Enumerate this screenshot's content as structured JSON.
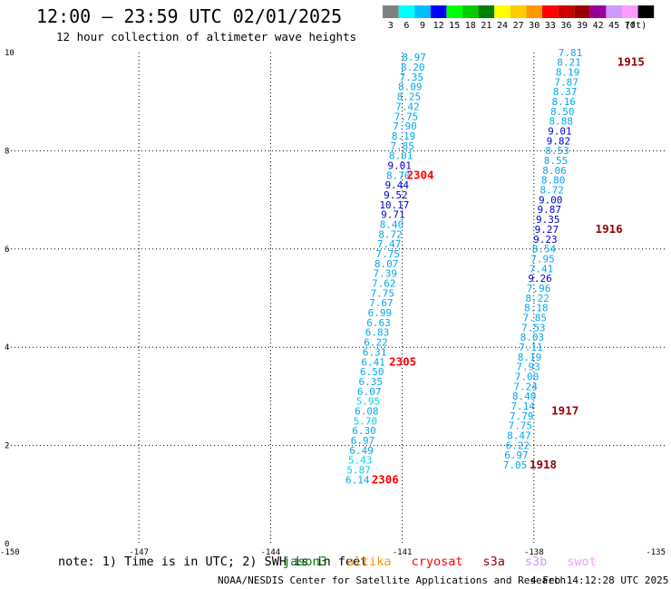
{
  "header": {
    "title": "12:00 – 23:59 UTC 02/01/2025",
    "subtitle": "12 hour collection of altimeter wave heights"
  },
  "legend": {
    "unit": "(ft)",
    "bins": [
      {
        "label": "3",
        "color": "#808080"
      },
      {
        "label": "6",
        "color": "#00ffff"
      },
      {
        "label": "9",
        "color": "#00bfff"
      },
      {
        "label": "12",
        "color": "#0000ff"
      },
      {
        "label": "15",
        "color": "#00ff00"
      },
      {
        "label": "18",
        "color": "#00cc00"
      },
      {
        "label": "21",
        "color": "#008000"
      },
      {
        "label": "24",
        "color": "#ffff00"
      },
      {
        "label": "27",
        "color": "#ffcc00"
      },
      {
        "label": "30",
        "color": "#ff9900"
      },
      {
        "label": "33",
        "color": "#ff0000"
      },
      {
        "label": "36",
        "color": "#cc0000"
      },
      {
        "label": "39",
        "color": "#990000"
      },
      {
        "label": "42",
        "color": "#990099"
      },
      {
        "label": "45",
        "color": "#cc99ff"
      },
      {
        "label": "70",
        "color": "#ff99ff"
      },
      {
        "label": "",
        "color": "#000000"
      }
    ]
  },
  "chart_data": {
    "type": "scatter",
    "xlim": [
      -150,
      -135
    ],
    "ylim": [
      0,
      10
    ],
    "xticks": [
      "-150",
      "-147",
      "-144",
      "-141",
      "-138",
      "-135"
    ],
    "yticks": [
      "0",
      "2",
      "4",
      "6",
      "8",
      "10"
    ],
    "xtick_values": [
      -150,
      -147,
      -144,
      -141,
      -138,
      -135
    ],
    "ytick_values": [
      0,
      2,
      4,
      6,
      8,
      10
    ],
    "grid": true,
    "tracks": [
      {
        "points": [
          {
            "x": -140.73,
            "y": 9.83,
            "v": "8.97"
          },
          {
            "x": -140.76,
            "y": 9.63,
            "v": "8.20"
          },
          {
            "x": -140.79,
            "y": 9.43,
            "v": "7.35"
          },
          {
            "x": -140.82,
            "y": 9.23,
            "v": "8.09"
          },
          {
            "x": -140.85,
            "y": 9.03,
            "v": "8.25"
          },
          {
            "x": -140.88,
            "y": 8.83,
            "v": "7.42"
          },
          {
            "x": -140.91,
            "y": 8.63,
            "v": "7.75"
          },
          {
            "x": -140.94,
            "y": 8.43,
            "v": "7.90"
          },
          {
            "x": -140.97,
            "y": 8.23,
            "v": "8.19"
          },
          {
            "x": -141.0,
            "y": 8.03,
            "v": "7.85"
          },
          {
            "x": -141.03,
            "y": 7.83,
            "v": "8.01"
          },
          {
            "x": -141.06,
            "y": 7.63,
            "v": "9.01"
          },
          {
            "x": -141.09,
            "y": 7.43,
            "v": "8.70"
          },
          {
            "x": -141.12,
            "y": 7.23,
            "v": "9.44"
          },
          {
            "x": -141.15,
            "y": 7.03,
            "v": "9.52"
          },
          {
            "x": -141.18,
            "y": 6.83,
            "v": "10.17"
          },
          {
            "x": -141.21,
            "y": 6.63,
            "v": "9.71"
          },
          {
            "x": -141.24,
            "y": 6.43,
            "v": "8.40"
          },
          {
            "x": -141.27,
            "y": 6.23,
            "v": "8.72"
          },
          {
            "x": -141.3,
            "y": 6.03,
            "v": "7.47"
          },
          {
            "x": -141.33,
            "y": 5.83,
            "v": "7.75"
          },
          {
            "x": -141.36,
            "y": 5.63,
            "v": "8.07"
          },
          {
            "x": -141.39,
            "y": 5.43,
            "v": "7.39"
          },
          {
            "x": -141.42,
            "y": 5.23,
            "v": "7.62"
          },
          {
            "x": -141.45,
            "y": 5.03,
            "v": "7.75"
          },
          {
            "x": -141.48,
            "y": 4.83,
            "v": "7.67"
          },
          {
            "x": -141.51,
            "y": 4.63,
            "v": "6.99"
          },
          {
            "x": -141.54,
            "y": 4.43,
            "v": "6.63"
          },
          {
            "x": -141.57,
            "y": 4.23,
            "v": "6.83"
          },
          {
            "x": -141.6,
            "y": 4.03,
            "v": "6.22"
          },
          {
            "x": -141.63,
            "y": 3.83,
            "v": "6.31"
          },
          {
            "x": -141.66,
            "y": 3.63,
            "v": "6.41"
          },
          {
            "x": -141.69,
            "y": 3.43,
            "v": "6.50"
          },
          {
            "x": -141.72,
            "y": 3.23,
            "v": "6.35"
          },
          {
            "x": -141.75,
            "y": 3.03,
            "v": "6.07"
          },
          {
            "x": -141.78,
            "y": 2.83,
            "v": "5.95"
          },
          {
            "x": -141.81,
            "y": 2.63,
            "v": "6.08"
          },
          {
            "x": -141.84,
            "y": 2.43,
            "v": "5.70"
          },
          {
            "x": -141.87,
            "y": 2.23,
            "v": "6.30"
          },
          {
            "x": -141.9,
            "y": 2.03,
            "v": "6.97"
          },
          {
            "x": -141.93,
            "y": 1.83,
            "v": "6.49"
          },
          {
            "x": -141.96,
            "y": 1.63,
            "v": "5.43"
          },
          {
            "x": -141.99,
            "y": 1.43,
            "v": "5.87"
          },
          {
            "x": -142.02,
            "y": 1.23,
            "v": "6.14"
          }
        ]
      },
      {
        "points": [
          {
            "x": -137.17,
            "y": 9.93,
            "v": "7.81"
          },
          {
            "x": -137.2,
            "y": 9.73,
            "v": "8.21"
          },
          {
            "x": -137.23,
            "y": 9.53,
            "v": "8.19"
          },
          {
            "x": -137.26,
            "y": 9.33,
            "v": "7.87"
          },
          {
            "x": -137.29,
            "y": 9.13,
            "v": "8.37"
          },
          {
            "x": -137.32,
            "y": 8.93,
            "v": "8.16"
          },
          {
            "x": -137.35,
            "y": 8.73,
            "v": "8.50"
          },
          {
            "x": -137.38,
            "y": 8.53,
            "v": "8.88"
          },
          {
            "x": -137.41,
            "y": 8.33,
            "v": "9.01"
          },
          {
            "x": -137.44,
            "y": 8.13,
            "v": "9.82"
          },
          {
            "x": -137.47,
            "y": 7.93,
            "v": "8.53"
          },
          {
            "x": -137.5,
            "y": 7.73,
            "v": "8.55"
          },
          {
            "x": -137.53,
            "y": 7.53,
            "v": "8.06"
          },
          {
            "x": -137.56,
            "y": 7.33,
            "v": "8.80"
          },
          {
            "x": -137.59,
            "y": 7.13,
            "v": "8.72"
          },
          {
            "x": -137.62,
            "y": 6.93,
            "v": "9.00"
          },
          {
            "x": -137.65,
            "y": 6.73,
            "v": "9.87"
          },
          {
            "x": -137.68,
            "y": 6.53,
            "v": "9.35"
          },
          {
            "x": -137.71,
            "y": 6.33,
            "v": "9.27"
          },
          {
            "x": -137.74,
            "y": 6.13,
            "v": "9.23"
          },
          {
            "x": -137.77,
            "y": 5.93,
            "v": "8.54"
          },
          {
            "x": -137.8,
            "y": 5.73,
            "v": "7.95"
          },
          {
            "x": -137.83,
            "y": 5.53,
            "v": "7.41"
          },
          {
            "x": -137.86,
            "y": 5.33,
            "v": "9.26"
          },
          {
            "x": -137.89,
            "y": 5.13,
            "v": "7.96"
          },
          {
            "x": -137.92,
            "y": 4.93,
            "v": "8.22"
          },
          {
            "x": -137.95,
            "y": 4.73,
            "v": "8.18"
          },
          {
            "x": -137.98,
            "y": 4.53,
            "v": "7.85"
          },
          {
            "x": -138.01,
            "y": 4.33,
            "v": "7.53"
          },
          {
            "x": -138.04,
            "y": 4.13,
            "v": "8.03"
          },
          {
            "x": -138.07,
            "y": 3.93,
            "v": "7.11"
          },
          {
            "x": -138.1,
            "y": 3.73,
            "v": "8.19"
          },
          {
            "x": -138.13,
            "y": 3.53,
            "v": "7.93"
          },
          {
            "x": -138.16,
            "y": 3.33,
            "v": "7.00"
          },
          {
            "x": -138.19,
            "y": 3.13,
            "v": "7.24"
          },
          {
            "x": -138.22,
            "y": 2.93,
            "v": "8.40"
          },
          {
            "x": -138.25,
            "y": 2.73,
            "v": "7.14"
          },
          {
            "x": -138.28,
            "y": 2.53,
            "v": "7.79"
          },
          {
            "x": -138.31,
            "y": 2.33,
            "v": "7.75"
          },
          {
            "x": -138.34,
            "y": 2.13,
            "v": "8.47"
          },
          {
            "x": -138.37,
            "y": 1.93,
            "v": "6.22"
          },
          {
            "x": -138.4,
            "y": 1.73,
            "v": "6.97"
          },
          {
            "x": -138.43,
            "y": 1.53,
            "v": "7.05"
          }
        ]
      }
    ],
    "annotations": [
      {
        "text": "1915",
        "x": -136.1,
        "y": 9.73,
        "color": "#990000"
      },
      {
        "text": "2304",
        "x": -140.9,
        "y": 7.43,
        "color": "#ff0000"
      },
      {
        "text": "1916",
        "x": -136.6,
        "y": 6.33,
        "color": "#990000"
      },
      {
        "text": "2305",
        "x": -141.3,
        "y": 3.63,
        "color": "#ff0000"
      },
      {
        "text": "1917",
        "x": -137.6,
        "y": 2.63,
        "color": "#990000"
      },
      {
        "text": "2306",
        "x": -141.7,
        "y": 1.23,
        "color": "#ff0000"
      },
      {
        "text": "1918",
        "x": -138.1,
        "y": 1.53,
        "color": "#990000"
      }
    ]
  },
  "footer": {
    "note": "note: 1) Time is in UTC; 2) SWH is in feet",
    "satellites": [
      {
        "name": "jason3",
        "color": "#008000"
      },
      {
        "name": "altika",
        "color": "#ff9900"
      },
      {
        "name": "cryosat",
        "color": "#ff0000"
      },
      {
        "name": "s3a",
        "color": "#990000"
      },
      {
        "name": "s3b",
        "color": "#cc99ff"
      },
      {
        "name": "swot",
        "color": "#ff99ff"
      }
    ],
    "credit": "NOAA/NESDIS Center for Satellite Applications and Research",
    "timestamp": "4 Feb 14:12:28 UTC 2025"
  }
}
